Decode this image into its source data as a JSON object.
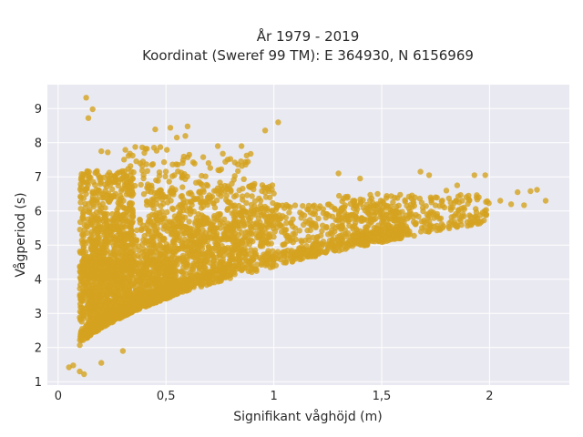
{
  "chart_data": {
    "type": "scatter",
    "title_line1": "År 1979 - 2019",
    "title_line2": "Koordinat (Sweref 99 TM): E 364930, N 6156969",
    "xlabel": "Signifikant våghöjd (m)",
    "ylabel": "Vågperiod (s)",
    "xlim": [
      -0.05,
      2.37
    ],
    "ylim": [
      0.9,
      9.7
    ],
    "x_ticks": [
      0,
      0.5,
      1,
      1.5,
      2
    ],
    "x_tick_labels": [
      "0",
      "0,5",
      "1",
      "1,5",
      "2"
    ],
    "y_ticks": [
      1,
      2,
      3,
      4,
      5,
      6,
      7,
      8,
      9
    ],
    "y_tick_labels": [
      "1",
      "2",
      "3",
      "4",
      "5",
      "6",
      "7",
      "8",
      "9"
    ],
    "grid": true,
    "legend": "none",
    "colors": {
      "marker": "#d4a21f",
      "plot_bg": "#e9e9f1",
      "grid": "#ffffff"
    },
    "sample_points": [
      {
        "x": 0.13,
        "y": 9.32
      },
      {
        "x": 0.16,
        "y": 8.98
      },
      {
        "x": 0.14,
        "y": 8.72
      },
      {
        "x": 1.02,
        "y": 8.6
      },
      {
        "x": 0.6,
        "y": 8.48
      },
      {
        "x": 0.52,
        "y": 8.44
      },
      {
        "x": 0.45,
        "y": 8.39
      },
      {
        "x": 0.96,
        "y": 8.36
      },
      {
        "x": 0.55,
        "y": 8.15
      },
      {
        "x": 0.59,
        "y": 8.2
      },
      {
        "x": 0.74,
        "y": 7.9
      },
      {
        "x": 0.85,
        "y": 7.9
      },
      {
        "x": 0.2,
        "y": 7.75
      },
      {
        "x": 0.23,
        "y": 7.72
      },
      {
        "x": 0.4,
        "y": 7.7
      },
      {
        "x": 1.68,
        "y": 7.15
      },
      {
        "x": 1.72,
        "y": 7.05
      },
      {
        "x": 1.93,
        "y": 7.05
      },
      {
        "x": 1.98,
        "y": 7.05
      },
      {
        "x": 1.3,
        "y": 7.1
      },
      {
        "x": 1.4,
        "y": 6.95
      },
      {
        "x": 2.22,
        "y": 6.62
      },
      {
        "x": 2.19,
        "y": 6.58
      },
      {
        "x": 2.26,
        "y": 6.3
      },
      {
        "x": 2.13,
        "y": 6.55
      },
      {
        "x": 2.16,
        "y": 6.17
      },
      {
        "x": 2.05,
        "y": 6.3
      },
      {
        "x": 2.1,
        "y": 6.2
      },
      {
        "x": 1.85,
        "y": 6.75
      },
      {
        "x": 1.8,
        "y": 6.6
      },
      {
        "x": 1.95,
        "y": 6.4
      },
      {
        "x": 1.75,
        "y": 6.4
      },
      {
        "x": 0.25,
        "y": 5.5
      },
      {
        "x": 0.3,
        "y": 4.5
      },
      {
        "x": 0.5,
        "y": 4.0
      },
      {
        "x": 0.8,
        "y": 4.2
      },
      {
        "x": 1.1,
        "y": 4.6
      },
      {
        "x": 1.3,
        "y": 5.0
      },
      {
        "x": 1.6,
        "y": 5.5
      },
      {
        "x": 0.07,
        "y": 1.48
      },
      {
        "x": 0.05,
        "y": 1.42
      },
      {
        "x": 0.1,
        "y": 1.3
      },
      {
        "x": 0.12,
        "y": 1.22
      },
      {
        "x": 0.2,
        "y": 1.55
      },
      {
        "x": 0.3,
        "y": 1.9
      }
    ],
    "density_regions": [
      {
        "x": [
          0.1,
          0.55
        ],
        "y": [
          1.4,
          4.6
        ],
        "weight": 1400
      },
      {
        "x": [
          0.15,
          0.8
        ],
        "y": [
          2.5,
          5.8
        ],
        "weight": 900
      },
      {
        "x": [
          0.1,
          0.35
        ],
        "y": [
          4.0,
          7.2
        ],
        "weight": 500
      },
      {
        "x": [
          0.4,
          1.0
        ],
        "y": [
          4.2,
          6.8
        ],
        "weight": 500
      },
      {
        "x": [
          0.8,
          1.6
        ],
        "y": [
          4.0,
          6.2
        ],
        "weight": 700
      },
      {
        "x": [
          1.3,
          2.0
        ],
        "y": [
          5.0,
          6.5
        ],
        "weight": 300
      },
      {
        "x": [
          0.3,
          0.9
        ],
        "y": [
          6.2,
          7.9
        ],
        "weight": 120
      }
    ]
  }
}
